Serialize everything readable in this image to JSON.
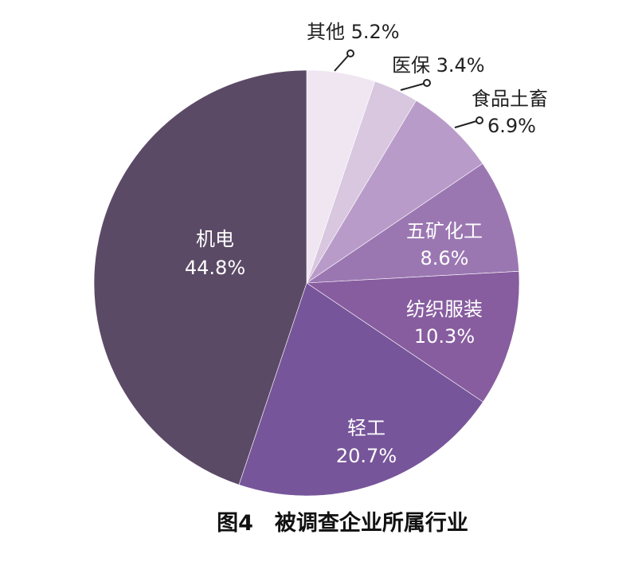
{
  "chart_data": {
    "type": "pie",
    "title": "",
    "caption": "图4　被调查企业所属行业",
    "start": "top",
    "direction": "clockwise",
    "slices": [
      {
        "name": "其他",
        "value": 5.2,
        "label": "5.2%",
        "color": "#efe6f2"
      },
      {
        "name": "医保",
        "value": 3.4,
        "label": "3.4%",
        "color": "#d8c7df"
      },
      {
        "name": "食品土畜",
        "value": 6.9,
        "label": "6.9%",
        "color": "#b99bc9"
      },
      {
        "name": "五矿化工",
        "value": 8.6,
        "label": "8.6%",
        "color": "#9b77b2"
      },
      {
        "name": "纺织服装",
        "value": 10.3,
        "label": "10.3%",
        "color": "#875d9f"
      },
      {
        "name": "轻工",
        "value": 20.7,
        "label": "20.7%",
        "color": "#77559a"
      },
      {
        "name": "机电",
        "value": 44.8,
        "label": "44.8%",
        "color": "#5b4a66"
      }
    ]
  }
}
